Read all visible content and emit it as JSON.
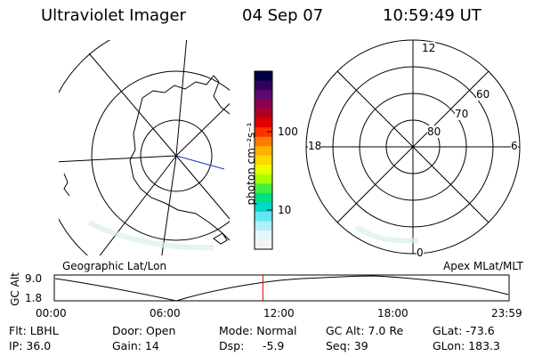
{
  "header": {
    "instrument": "Ultraviolet Imager",
    "date": "04 Sep 07",
    "time": "10:59:49 UT"
  },
  "colorbar": {
    "label": "photon cm⁻²s⁻¹",
    "ticks": [
      {
        "label": "100",
        "value": 100
      },
      {
        "label": "10",
        "value": 10
      }
    ],
    "colors": [
      "#000040",
      "#300060",
      "#5a0a70",
      "#8a0050",
      "#b00020",
      "#e00000",
      "#ff3000",
      "#ff7a00",
      "#ffb000",
      "#ffd800",
      "#eaff00",
      "#a8ff00",
      "#40f040",
      "#00e080",
      "#00d8c8",
      "#60e8f0",
      "#b0f0f8",
      "#e6f6f8",
      "#f4f4f4"
    ]
  },
  "geographic_map": {
    "label": "Geographic Lat/Lon"
  },
  "apex_map": {
    "label": "Apex MLat/MLT",
    "mlt_labels": {
      "top": "12",
      "left": "18",
      "right": "6",
      "bottom": "0"
    },
    "lat_labels": [
      "60",
      "70",
      "80"
    ]
  },
  "altitude_plot": {
    "ylabel": "GC Alt",
    "yticks": [
      "9.0",
      "1.8"
    ],
    "xticks": [
      "00:00",
      "06:00",
      "12:00",
      "18:00",
      "23:59"
    ],
    "current_time_marker": "10:59:49",
    "marker_color": "#e00000"
  },
  "status": {
    "flt": "Flt: LBHL",
    "ip": "IP: 36.0",
    "door": "Door: Open",
    "gain": "Gain: 14",
    "mode": "Mode: Normal",
    "dsp_label": "Dsp:",
    "dsp_value": "-5.9",
    "gcalt": "GC Alt: 7.0 Re",
    "seq": "Seq: 39",
    "glat": "GLat: -73.6",
    "glon": "GLon: 183.3"
  }
}
